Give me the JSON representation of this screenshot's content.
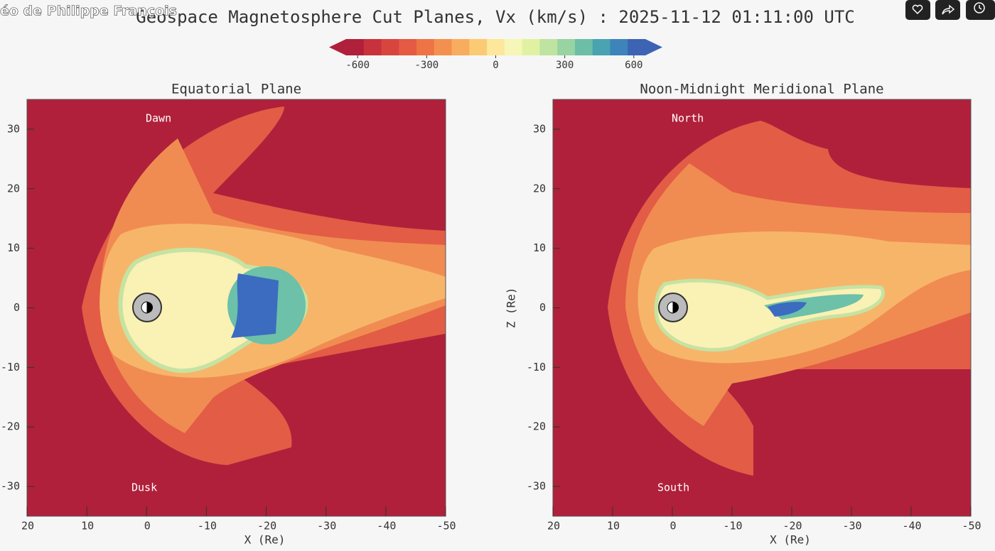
{
  "video": {
    "overlay_title": "éo de Philippe François"
  },
  "figure": {
    "title": "Geospace Magnetosphere Cut Planes, Vx (km/s) : 2025-11-12 01:11:00 UTC",
    "colorbar": {
      "lim": [
        -650,
        650
      ],
      "ticks": [
        -600,
        -300,
        0,
        300,
        600
      ],
      "colors": [
        "#b0203b",
        "#c8323d",
        "#d8453f",
        "#e45a42",
        "#ee7446",
        "#f4904f",
        "#f8ad5e",
        "#fbcb74",
        "#fde79a",
        "#f6f6b8",
        "#e0f2a2",
        "#bfe3a0",
        "#98d3a2",
        "#6cbfa6",
        "#4aa3b0",
        "#3d84bb",
        "#3d63b4"
      ]
    }
  },
  "panels": [
    {
      "title": "Equatorial Plane",
      "xlabel": "X (Re)",
      "annotation_top": "Dawn",
      "annotation_bottom": "Dusk",
      "xlim": [
        20,
        -50
      ],
      "ylim": [
        -35,
        35
      ],
      "xticks": [
        20,
        10,
        0,
        -10,
        -20,
        -30,
        -40,
        -50
      ],
      "yticks": [
        -30,
        -20,
        -10,
        0,
        10,
        20,
        30
      ]
    },
    {
      "title": "Noon-Midnight Meridional Plane",
      "xlabel": "X (Re)",
      "ylabel": "Z (Re)",
      "annotation_top": "North",
      "annotation_bottom": "South",
      "xlim": [
        20,
        -50
      ],
      "ylim": [
        -35,
        35
      ],
      "xticks": [
        20,
        10,
        0,
        -10,
        -20,
        -30,
        -40,
        -50
      ],
      "yticks": [
        -30,
        -20,
        -10,
        0,
        10,
        20,
        30
      ]
    }
  ]
}
